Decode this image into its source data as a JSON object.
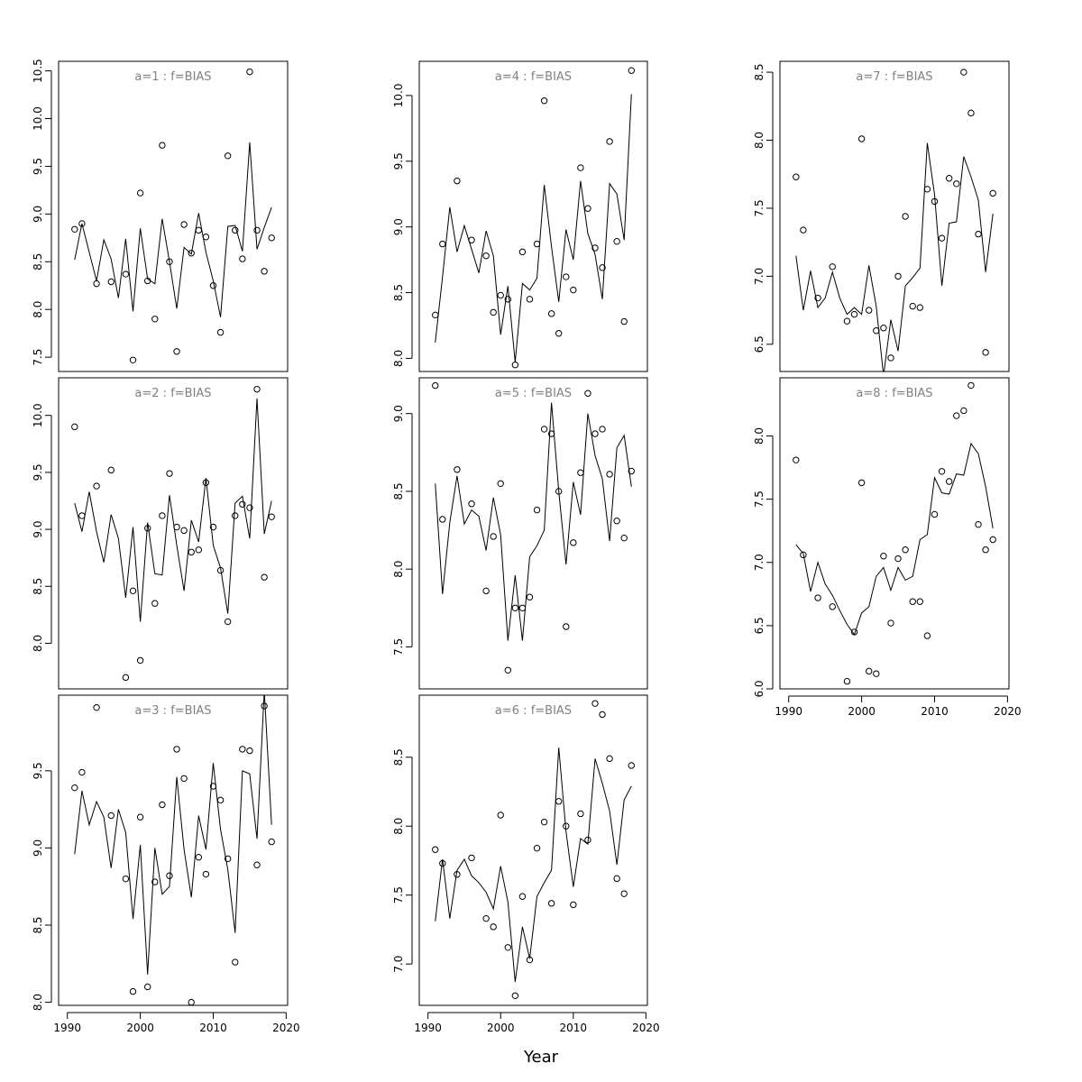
{
  "figure": {
    "xlabel": "Year"
  },
  "chart_data": [
    {
      "type": "line",
      "title": "a=1  :  f=BIAS",
      "x": [
        1991,
        1992,
        1993,
        1994,
        1995,
        1996,
        1997,
        1998,
        1999,
        2000,
        2001,
        2002,
        2003,
        2004,
        2005,
        2006,
        2007,
        2008,
        2009,
        2010,
        2011,
        2012,
        2013,
        2014,
        2015,
        2016,
        2017,
        2018
      ],
      "series": [
        {
          "values": [
            8.52,
            8.9,
            8.6,
            8.3,
            8.73,
            8.53,
            8.12,
            8.74,
            7.98,
            8.85,
            8.32,
            8.27,
            8.95,
            8.5,
            8.01,
            8.65,
            8.58,
            9.01,
            8.6,
            8.3,
            7.92,
            8.87,
            8.88,
            8.61,
            9.75,
            8.63,
            8.86,
            9.07
          ]
        }
      ],
      "points": [
        8.84,
        8.9,
        null,
        8.27,
        null,
        8.29,
        null,
        8.37,
        7.47,
        9.22,
        8.3,
        7.9,
        9.72,
        8.5,
        7.56,
        8.89,
        8.59,
        8.83,
        8.76,
        8.25,
        7.76,
        9.61,
        8.83,
        8.53,
        10.49,
        8.83,
        8.4,
        8.75
      ],
      "ylim": [
        7.35,
        10.6
      ],
      "yticks": [
        7.5,
        8.0,
        8.5,
        9.0,
        9.5,
        10.0,
        10.5
      ],
      "xlim": [
        1988.8,
        2020.2
      ],
      "show_xticks": false
    },
    {
      "type": "line",
      "title": "a=2  :  f=BIAS",
      "x": [
        1991,
        1992,
        1993,
        1994,
        1995,
        1996,
        1997,
        1998,
        1999,
        2000,
        2001,
        2002,
        2003,
        2004,
        2005,
        2006,
        2007,
        2008,
        2009,
        2010,
        2011,
        2012,
        2013,
        2014,
        2015,
        2016,
        2017,
        2018
      ],
      "series": [
        {
          "values": [
            9.23,
            8.98,
            9.33,
            8.98,
            8.71,
            9.13,
            8.92,
            8.4,
            9.02,
            8.19,
            9.06,
            8.61,
            8.6,
            9.3,
            8.86,
            8.46,
            9.08,
            8.89,
            9.45,
            8.86,
            8.66,
            8.26,
            9.23,
            9.29,
            8.92,
            10.15,
            8.96,
            9.25
          ]
        }
      ],
      "points": [
        9.9,
        9.12,
        null,
        9.38,
        null,
        9.52,
        null,
        7.7,
        8.46,
        7.85,
        9.01,
        8.35,
        9.12,
        9.49,
        9.02,
        8.99,
        8.8,
        8.82,
        9.41,
        9.02,
        8.64,
        8.19,
        9.12,
        9.22,
        9.19,
        10.23,
        8.58,
        9.11
      ],
      "ylim": [
        7.6,
        10.33
      ],
      "yticks": [
        8.0,
        8.5,
        9.0,
        9.5,
        10.0
      ],
      "xlim": [
        1988.8,
        2020.2
      ],
      "show_xticks": false
    },
    {
      "type": "line",
      "title": "a=3  :  f=BIAS",
      "x": [
        1991,
        1992,
        1993,
        1994,
        1995,
        1996,
        1997,
        1998,
        1999,
        2000,
        2001,
        2002,
        2003,
        2004,
        2005,
        2006,
        2007,
        2008,
        2009,
        2010,
        2011,
        2012,
        2013,
        2014,
        2015,
        2016,
        2017,
        2018
      ],
      "series": [
        {
          "values": [
            8.96,
            9.37,
            9.15,
            9.3,
            9.2,
            8.87,
            9.25,
            9.1,
            8.54,
            9.02,
            8.18,
            9.0,
            8.7,
            8.75,
            9.46,
            8.99,
            8.68,
            9.21,
            8.99,
            9.55,
            9.12,
            8.86,
            8.45,
            9.5,
            9.48,
            9.06,
            10.02,
            9.15
          ]
        }
      ],
      "points": [
        9.39,
        9.49,
        null,
        9.91,
        null,
        9.21,
        null,
        8.8,
        8.07,
        9.2,
        8.1,
        8.78,
        9.28,
        8.82,
        9.64,
        9.45,
        8.0,
        8.94,
        8.83,
        9.4,
        9.31,
        8.93,
        8.26,
        9.64,
        9.63,
        8.89,
        9.92,
        9.04
      ],
      "ylim": [
        7.98,
        9.99
      ],
      "yticks": [
        8.0,
        8.5,
        9.0,
        9.5
      ],
      "xlim": [
        1988.8,
        2020.2
      ],
      "show_xticks": true
    },
    {
      "type": "line",
      "title": "a=4  :  f=BIAS",
      "x": [
        1991,
        1992,
        1993,
        1994,
        1995,
        1996,
        1997,
        1998,
        1999,
        2000,
        2001,
        2002,
        2003,
        2004,
        2005,
        2006,
        2007,
        2008,
        2009,
        2010,
        2011,
        2012,
        2013,
        2014,
        2015,
        2016,
        2017,
        2018
      ],
      "series": [
        {
          "values": [
            8.12,
            8.62,
            9.15,
            8.81,
            9.01,
            8.83,
            8.65,
            8.97,
            8.78,
            8.18,
            8.55,
            7.97,
            8.57,
            8.52,
            8.61,
            9.32,
            8.85,
            8.43,
            8.98,
            8.75,
            9.35,
            8.95,
            8.79,
            8.45,
            9.33,
            9.25,
            8.9,
            10.01
          ]
        }
      ],
      "points": [
        8.33,
        8.87,
        null,
        9.35,
        null,
        8.9,
        null,
        8.78,
        8.35,
        8.48,
        8.45,
        7.95,
        8.81,
        8.45,
        8.87,
        9.96,
        8.34,
        8.19,
        8.62,
        8.52,
        9.45,
        9.14,
        8.84,
        8.69,
        9.65,
        8.89,
        8.28,
        10.19
      ],
      "ylim": [
        7.9,
        10.26
      ],
      "yticks": [
        8.0,
        8.5,
        9.0,
        9.5,
        10.0
      ],
      "xlim": [
        1988.8,
        2020.2
      ],
      "show_xticks": false
    },
    {
      "type": "line",
      "title": "a=5  :  f=BIAS",
      "x": [
        1991,
        1992,
        1993,
        1994,
        1995,
        1996,
        1997,
        1998,
        1999,
        2000,
        2001,
        2002,
        2003,
        2004,
        2005,
        2006,
        2007,
        2008,
        2009,
        2010,
        2011,
        2012,
        2013,
        2014,
        2015,
        2016,
        2017,
        2018
      ],
      "series": [
        {
          "values": [
            8.55,
            7.84,
            8.3,
            8.6,
            8.29,
            8.38,
            8.34,
            8.12,
            8.46,
            8.22,
            7.54,
            7.96,
            7.54,
            8.08,
            8.15,
            8.25,
            9.07,
            8.5,
            8.03,
            8.56,
            8.35,
            9.0,
            8.73,
            8.58,
            8.18,
            8.78,
            8.86,
            8.53
          ]
        }
      ],
      "points": [
        9.18,
        8.32,
        null,
        8.64,
        null,
        8.42,
        null,
        7.86,
        8.21,
        8.55,
        7.35,
        7.75,
        7.75,
        7.82,
        8.38,
        8.9,
        8.87,
        8.5,
        7.63,
        8.17,
        8.62,
        9.13,
        8.87,
        8.9,
        8.61,
        8.31,
        8.2,
        8.63
      ],
      "ylim": [
        7.23,
        9.23
      ],
      "yticks": [
        7.5,
        8.0,
        8.5,
        9.0
      ],
      "xlim": [
        1988.8,
        2020.2
      ],
      "show_xticks": false
    },
    {
      "type": "line",
      "title": "a=6  :  f=BIAS",
      "x": [
        1991,
        1992,
        1993,
        1994,
        1995,
        1996,
        1997,
        1998,
        1999,
        2000,
        2001,
        2002,
        2003,
        2004,
        2005,
        2006,
        2007,
        2008,
        2009,
        2010,
        2011,
        2012,
        2013,
        2014,
        2015,
        2016,
        2017,
        2018
      ],
      "series": [
        {
          "values": [
            7.31,
            7.76,
            7.33,
            7.68,
            7.76,
            7.64,
            7.59,
            7.52,
            7.4,
            7.71,
            7.45,
            6.87,
            7.27,
            7.04,
            7.49,
            7.59,
            7.68,
            8.57,
            7.96,
            7.56,
            7.91,
            7.87,
            8.49,
            8.31,
            8.11,
            7.72,
            8.19,
            8.29
          ]
        }
      ],
      "points": [
        7.83,
        7.73,
        null,
        7.65,
        null,
        7.77,
        null,
        7.33,
        7.27,
        8.08,
        7.12,
        6.77,
        7.49,
        7.03,
        7.84,
        8.03,
        7.44,
        8.18,
        8.0,
        7.43,
        8.09,
        7.9,
        8.89,
        8.81,
        8.49,
        7.62,
        7.51,
        8.44
      ],
      "ylim": [
        6.7,
        8.95
      ],
      "yticks": [
        7.0,
        7.5,
        8.0,
        8.5
      ],
      "xlim": [
        1988.8,
        2020.2
      ],
      "show_xticks": true
    },
    {
      "type": "line",
      "title": "a=7  :  f=BIAS",
      "x": [
        1991,
        1992,
        1993,
        1994,
        1995,
        1996,
        1997,
        1998,
        1999,
        2000,
        2001,
        2002,
        2003,
        2004,
        2005,
        2006,
        2007,
        2008,
        2009,
        2010,
        2011,
        2012,
        2013,
        2014,
        2015,
        2016,
        2017,
        2018
      ],
      "series": [
        {
          "values": [
            7.15,
            6.75,
            7.04,
            6.77,
            6.84,
            7.03,
            6.84,
            6.72,
            6.77,
            6.72,
            7.08,
            6.78,
            6.27,
            6.68,
            6.45,
            6.93,
            6.99,
            7.06,
            7.98,
            7.6,
            6.93,
            7.39,
            7.4,
            7.88,
            7.73,
            7.56,
            7.03,
            7.46
          ]
        }
      ],
      "points": [
        7.73,
        7.34,
        null,
        6.84,
        null,
        7.07,
        null,
        6.67,
        6.72,
        8.01,
        6.75,
        6.6,
        6.62,
        6.4,
        7.0,
        7.44,
        6.78,
        6.77,
        7.64,
        7.55,
        7.28,
        7.72,
        7.68,
        8.5,
        8.2,
        7.31,
        6.44,
        7.61
      ],
      "ylim": [
        6.3,
        8.58
      ],
      "yticks": [
        6.5,
        7.0,
        7.5,
        8.0,
        8.5
      ],
      "xlim": [
        1988.8,
        2020.2
      ],
      "show_xticks": false
    },
    {
      "type": "line",
      "title": "a=8  :  f=BIAS",
      "x": [
        1991,
        1992,
        1993,
        1994,
        1995,
        1996,
        1997,
        1998,
        1999,
        2000,
        2001,
        2002,
        2003,
        2004,
        2005,
        2006,
        2007,
        2008,
        2009,
        2010,
        2011,
        2012,
        2013,
        2014,
        2015,
        2016,
        2017,
        2018
      ],
      "series": [
        {
          "values": [
            7.14,
            7.07,
            6.77,
            7.0,
            6.83,
            6.74,
            6.62,
            6.51,
            6.43,
            6.6,
            6.65,
            6.89,
            6.96,
            6.78,
            6.96,
            6.86,
            6.89,
            7.18,
            7.22,
            7.67,
            7.55,
            7.54,
            7.7,
            7.69,
            7.94,
            7.86,
            7.6,
            7.27
          ]
        }
      ],
      "points": [
        7.81,
        7.06,
        null,
        6.72,
        null,
        6.65,
        null,
        6.06,
        6.45,
        7.63,
        6.14,
        6.12,
        7.05,
        6.52,
        7.03,
        7.1,
        6.69,
        6.69,
        6.42,
        7.38,
        7.72,
        7.64,
        8.16,
        8.2,
        8.4,
        7.3,
        7.1,
        7.18
      ],
      "ylim": [
        6.0,
        8.46
      ],
      "yticks": [
        6.0,
        6.5,
        7.0,
        7.5,
        8.0
      ],
      "xlim": [
        1988.8,
        2020.2
      ],
      "show_xticks": true
    }
  ],
  "xticks": [
    1990,
    2000,
    2010,
    2020
  ]
}
